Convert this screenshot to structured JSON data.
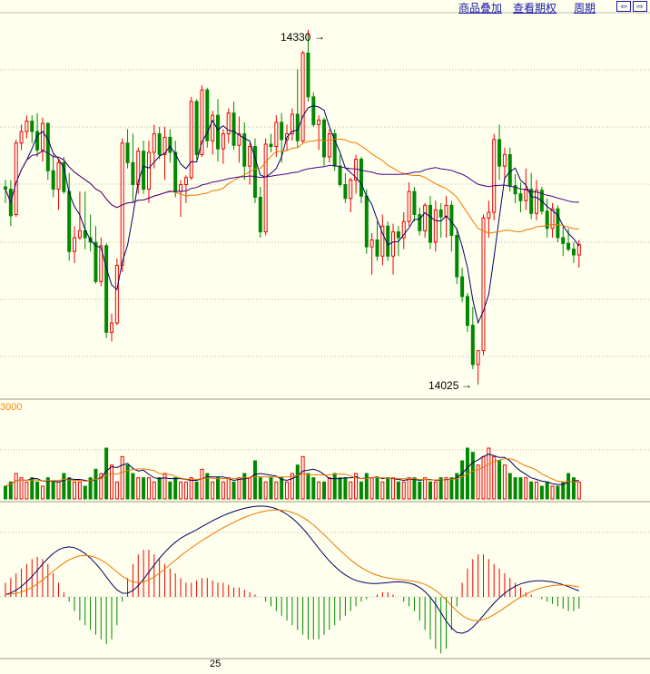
{
  "toolbar": {
    "overlay_label": "商品叠加",
    "options_label": "查看期权",
    "period_label": "周期",
    "nav_prev": "⇦",
    "nav_next": "⇨"
  },
  "price_annotations": {
    "high": "14330",
    "low": "14025"
  },
  "volume_axis_label": "3000",
  "date_label": "25",
  "colors": {
    "background": "#FFFFEE",
    "up": "#EE0000",
    "down": "#008800",
    "ma_fast": "#000066",
    "ma_mid": "#EE7700",
    "ma_slow": "#440088",
    "grid": "#BBBBAA"
  },
  "chart_data": {
    "type": "candlestick",
    "bars": [
      [
        14194,
        14200,
        14180,
        14192
      ],
      [
        14192,
        14200,
        14160,
        14169
      ],
      [
        14170,
        14235,
        14168,
        14232
      ],
      [
        14232,
        14248,
        14226,
        14242
      ],
      [
        14242,
        14256,
        14236,
        14251
      ],
      [
        14251,
        14256,
        14232,
        14242
      ],
      [
        14242,
        14258,
        14220,
        14226
      ],
      [
        14226,
        14254,
        14216,
        14249
      ],
      [
        14249,
        14250,
        14200,
        14208
      ],
      [
        14208,
        14222,
        14185,
        14192
      ],
      [
        14192,
        14218,
        14174,
        14215
      ],
      [
        14215,
        14220,
        14188,
        14190
      ],
      [
        14190,
        14206,
        14130,
        14138
      ],
      [
        14138,
        14160,
        14128,
        14150
      ],
      [
        14150,
        14190,
        14148,
        14156
      ],
      [
        14156,
        14190,
        14140,
        14150
      ],
      [
        14150,
        14170,
        14138,
        14146
      ],
      [
        14146,
        14160,
        14110,
        14112
      ],
      [
        14112,
        14150,
        14108,
        14143
      ],
      [
        14143,
        14145,
        14063,
        14068
      ],
      [
        14068,
        14084,
        14060,
        14076
      ],
      [
        14076,
        14132,
        14074,
        14126
      ],
      [
        14126,
        14236,
        14120,
        14232
      ],
      [
        14232,
        14244,
        14210,
        14215
      ],
      [
        14215,
        14240,
        14180,
        14196
      ],
      [
        14196,
        14228,
        14188,
        14225
      ],
      [
        14225,
        14234,
        14188,
        14192
      ],
      [
        14192,
        14234,
        14180,
        14224
      ],
      [
        14224,
        14248,
        14210,
        14240
      ],
      [
        14240,
        14246,
        14218,
        14222
      ],
      [
        14222,
        14246,
        14200,
        14237
      ],
      [
        14237,
        14244,
        14215,
        14224
      ],
      [
        14224,
        14234,
        14185,
        14190
      ],
      [
        14190,
        14200,
        14168,
        14196
      ],
      [
        14196,
        14204,
        14180,
        14202
      ],
      [
        14202,
        14272,
        14200,
        14268
      ],
      [
        14268,
        14270,
        14218,
        14222
      ],
      [
        14222,
        14282,
        14220,
        14278
      ],
      [
        14278,
        14280,
        14228,
        14234
      ],
      [
        14234,
        14260,
        14222,
        14256
      ],
      [
        14256,
        14270,
        14216,
        14227
      ],
      [
        14227,
        14244,
        14214,
        14240
      ],
      [
        14240,
        14262,
        14232,
        14258
      ],
      [
        14258,
        14268,
        14226,
        14230
      ],
      [
        14230,
        14255,
        14215,
        14240
      ],
      [
        14240,
        14250,
        14200,
        14212
      ],
      [
        14212,
        14232,
        14196,
        14229
      ],
      [
        14229,
        14236,
        14180,
        14185
      ],
      [
        14185,
        14194,
        14150,
        14155
      ],
      [
        14155,
        14236,
        14152,
        14231
      ],
      [
        14231,
        14240,
        14224,
        14229
      ],
      [
        14229,
        14256,
        14220,
        14250
      ],
      [
        14250,
        14258,
        14215,
        14235
      ],
      [
        14235,
        14248,
        14225,
        14240
      ],
      [
        14240,
        14262,
        14234,
        14257
      ],
      [
        14257,
        14296,
        14228,
        14234
      ],
      [
        14234,
        14312,
        14232,
        14310
      ],
      [
        14310,
        14330,
        14268,
        14272
      ],
      [
        14272,
        14276,
        14246,
        14248
      ],
      [
        14248,
        14256,
        14226,
        14252
      ],
      [
        14252,
        14254,
        14212,
        14220
      ],
      [
        14220,
        14244,
        14215,
        14240
      ],
      [
        14240,
        14244,
        14208,
        14212
      ],
      [
        14212,
        14222,
        14194,
        14196
      ],
      [
        14196,
        14206,
        14180,
        14184
      ],
      [
        14184,
        14202,
        14172,
        14200
      ],
      [
        14200,
        14222,
        14188,
        14218
      ],
      [
        14218,
        14220,
        14180,
        14186
      ],
      [
        14186,
        14192,
        14136,
        14142
      ],
      [
        14142,
        14154,
        14118,
        14148
      ],
      [
        14148,
        14164,
        14130,
        14134
      ],
      [
        14134,
        14170,
        14126,
        14160
      ],
      [
        14160,
        14164,
        14130,
        14134
      ],
      [
        14134,
        14162,
        14118,
        14155
      ],
      [
        14155,
        14160,
        14134,
        14150
      ],
      [
        14150,
        14172,
        14140,
        14164
      ],
      [
        14164,
        14198,
        14160,
        14190
      ],
      [
        14190,
        14194,
        14164,
        14170
      ],
      [
        14170,
        14176,
        14152,
        14156
      ],
      [
        14156,
        14180,
        14150,
        14178
      ],
      [
        14178,
        14186,
        14140,
        14146
      ],
      [
        14146,
        14182,
        14138,
        14174
      ],
      [
        14174,
        14180,
        14150,
        14168
      ],
      [
        14168,
        14186,
        14150,
        14178
      ],
      [
        14178,
        14182,
        14138,
        14152
      ],
      [
        14152,
        14158,
        14110,
        14116
      ],
      [
        14116,
        14124,
        14094,
        14099
      ],
      [
        14099,
        14102,
        14068,
        14074
      ],
      [
        14074,
        14090,
        14036,
        14040
      ],
      [
        14040,
        14050,
        14025,
        14052
      ],
      [
        14052,
        14170,
        14048,
        14167
      ],
      [
        14167,
        14182,
        14150,
        14172
      ],
      [
        14172,
        14240,
        14165,
        14235
      ],
      [
        14235,
        14248,
        14200,
        14212
      ],
      [
        14212,
        14228,
        14200,
        14222
      ],
      [
        14222,
        14228,
        14190,
        14195
      ],
      [
        14195,
        14205,
        14180,
        14188
      ],
      [
        14188,
        14198,
        14172,
        14182
      ],
      [
        14182,
        14210,
        14174,
        14192
      ],
      [
        14192,
        14206,
        14166,
        14171
      ],
      [
        14171,
        14200,
        14165,
        14191
      ],
      [
        14191,
        14194,
        14170,
        14173
      ],
      [
        14173,
        14184,
        14150,
        14158
      ],
      [
        14158,
        14180,
        14150,
        14175
      ],
      [
        14175,
        14178,
        14146,
        14150
      ],
      [
        14150,
        14160,
        14134,
        14145
      ],
      [
        14145,
        14158,
        14138,
        14140
      ],
      [
        14140,
        14146,
        14128,
        14135
      ],
      [
        14135,
        14148,
        14124,
        14144
      ]
    ],
    "volume": [
      3,
      4,
      6,
      5,
      4,
      5,
      4,
      3,
      5,
      4,
      4,
      6,
      5,
      4,
      4,
      3,
      5,
      7,
      6,
      12,
      8,
      4,
      10,
      8,
      6,
      5,
      5,
      5,
      4,
      5,
      6,
      4,
      5,
      4,
      4,
      5,
      4,
      7,
      6,
      4,
      5,
      4,
      5,
      4,
      5,
      6,
      5,
      9,
      5,
      4,
      5,
      4,
      5,
      4,
      6,
      8,
      10,
      6,
      5,
      4,
      4,
      5,
      6,
      5,
      5,
      4,
      6,
      4,
      6,
      5,
      5,
      4,
      5,
      5,
      4,
      4,
      5,
      5,
      4,
      5,
      4,
      4,
      5,
      5,
      5,
      6,
      9,
      12,
      11,
      8,
      10,
      12,
      10,
      9,
      8,
      6,
      5,
      5,
      5,
      4,
      4,
      3,
      4,
      3,
      3,
      4,
      6,
      5,
      4
    ],
    "macd_hist": [
      6,
      8,
      10,
      12,
      14,
      16,
      17,
      16,
      14,
      10,
      6,
      2,
      -2,
      -6,
      -10,
      -12,
      -14,
      -16,
      -18,
      -20,
      -18,
      -12,
      -2,
      8,
      14,
      18,
      20,
      20,
      18,
      16,
      14,
      12,
      10,
      8,
      6,
      6,
      7,
      8,
      8,
      7,
      6,
      6,
      5,
      4,
      4,
      3,
      2,
      1,
      0,
      -2,
      -4,
      -6,
      -8,
      -10,
      -12,
      -14,
      -16,
      -18,
      -18,
      -18,
      -16,
      -14,
      -12,
      -10,
      -8,
      -6,
      -4,
      -2,
      -1,
      0,
      1,
      2,
      2,
      1,
      0,
      -2,
      -4,
      -6,
      -10,
      -14,
      -18,
      -22,
      -24,
      -22,
      -14,
      -4,
      6,
      12,
      16,
      18,
      18,
      16,
      14,
      12,
      10,
      8,
      6,
      4,
      2,
      1,
      0,
      -1,
      -2,
      -3,
      -4,
      -5,
      -6,
      -6,
      -5
    ],
    "ylim": [
      14010,
      14345
    ]
  }
}
